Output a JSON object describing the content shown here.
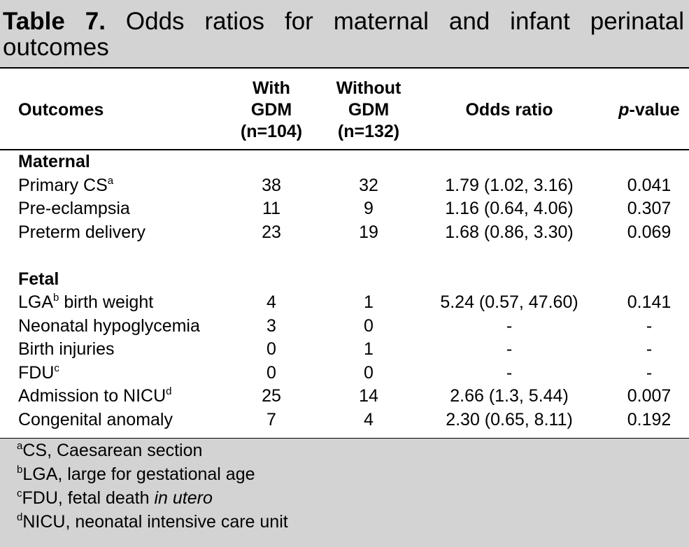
{
  "caption": {
    "label": "Table 7.",
    "text": "Odds ratios for maternal and infant perinatal outcomes"
  },
  "table": {
    "header": {
      "outcomes": "Outcomes",
      "with": [
        "With",
        "GDM",
        "(n=104)"
      ],
      "without": [
        "Without",
        "GDM",
        "(n=132)"
      ],
      "odds": "Odds ratio",
      "p": {
        "italic": "p",
        "text": "-value"
      }
    },
    "sections": [
      {
        "name": "Maternal",
        "rows": [
          {
            "label": "Primary CS",
            "sup": "a",
            "cells": [
              38,
              32,
              "1.79 (1.02, 3.16)",
              "0.041"
            ]
          },
          {
            "label": "Pre-eclampsia",
            "cells": [
              11,
              9,
              "1.16 (0.64, 4.06)",
              "0.307"
            ]
          },
          {
            "label": "Preterm delivery",
            "cells": [
              23,
              19,
              "1.68 (0.86, 3.30)",
              "0.069"
            ]
          }
        ]
      },
      {
        "name": "Fetal",
        "rows": [
          {
            "label": "LGA",
            "sup": "b",
            "label2": "birth weight",
            "cells": [
              4,
              1,
              "5.24 (0.57, 47.60)",
              "0.141"
            ]
          },
          {
            "label": "Neonatal hypoglycemia",
            "cells": [
              3,
              0,
              "-",
              "-"
            ]
          },
          {
            "label": "Birth injuries",
            "cells": [
              0,
              1,
              "-",
              "-"
            ]
          },
          {
            "label": "FDU",
            "sup": "c",
            "cells": [
              0,
              0,
              "-",
              "-"
            ]
          },
          {
            "label": "Admission to NICU",
            "sup": "d",
            "cells": [
              25,
              14,
              "2.66 (1.3, 5.44)",
              "0.007"
            ]
          },
          {
            "label": "Congenital anomaly",
            "cells": [
              7,
              4,
              "2.30 (0.65, 8.11)",
              "0.192"
            ]
          }
        ]
      }
    ]
  },
  "footnotes": [
    {
      "mark": "a",
      "text": "CS, Caesarean section"
    },
    {
      "mark": "b",
      "text": "LGA, large for gestational age"
    },
    {
      "mark": "c",
      "text": "FDU, fetal death",
      "italic": "in utero"
    },
    {
      "mark": "d",
      "text": "NICU, neonatal intensive care unit"
    }
  ]
}
